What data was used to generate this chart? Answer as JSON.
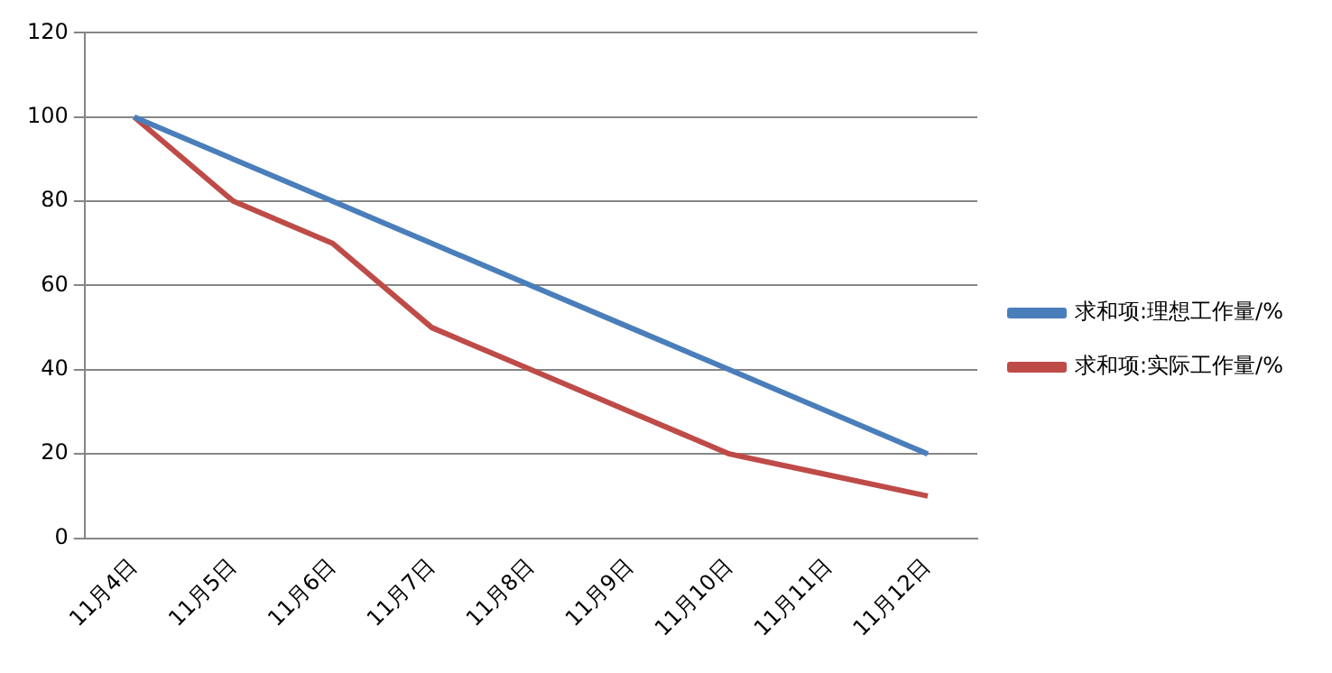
{
  "chart_data": {
    "type": "line",
    "categories": [
      "11月4日",
      "11月5日",
      "11月6日",
      "11月7日",
      "11月8日",
      "11月9日",
      "11月10日",
      "11月11日",
      "11月12日"
    ],
    "series": [
      {
        "name": "求和项:理想工作量/%",
        "color": "#4a7ebb",
        "values": [
          100,
          90,
          80,
          70,
          60,
          50,
          40,
          30,
          20
        ]
      },
      {
        "name": "求和项:实际工作量/%",
        "color": "#be4b48",
        "values": [
          100,
          80,
          70,
          50,
          40,
          30,
          20,
          15,
          10
        ]
      }
    ],
    "ylim": [
      0,
      120
    ],
    "yticks": [
      0,
      20,
      40,
      60,
      80,
      100,
      120
    ],
    "grid": "y",
    "legend": "right",
    "marker": "none",
    "line_style": "solid"
  }
}
